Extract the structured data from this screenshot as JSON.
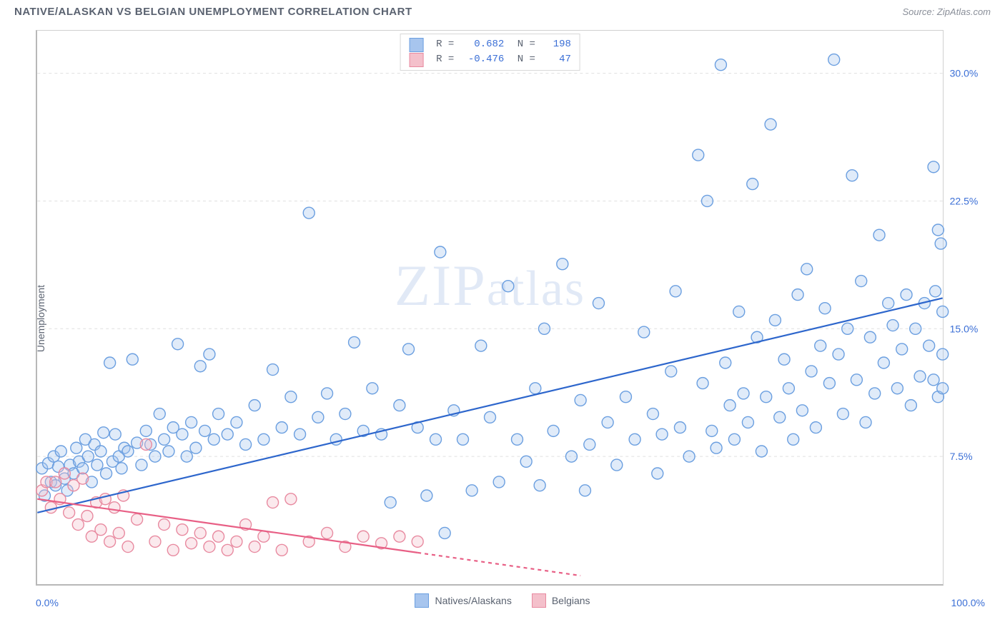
{
  "title": "NATIVE/ALASKAN VS BELGIAN UNEMPLOYMENT CORRELATION CHART",
  "source_label": "Source: ZipAtlas.com",
  "watermark_text": "ZIPatlas",
  "chart": {
    "type": "scatter",
    "ylabel": "Unemployment",
    "xlim": [
      0,
      100
    ],
    "ylim": [
      0,
      32.5
    ],
    "x_ticks": [
      {
        "pos": 0,
        "label": "0.0%"
      },
      {
        "pos": 100,
        "label": "100.0%"
      }
    ],
    "y_ticks": [
      {
        "pos": 7.5,
        "label": "7.5%"
      },
      {
        "pos": 15.0,
        "label": "15.0%"
      },
      {
        "pos": 22.5,
        "label": "22.5%"
      },
      {
        "pos": 30.0,
        "label": "30.0%"
      }
    ],
    "grid_color": "#e0e0e0",
    "background_color": "#ffffff",
    "marker_radius": 8,
    "marker_stroke_width": 1.4,
    "marker_fill_opacity": 0.35,
    "trend_line_width": 2.2,
    "series": [
      {
        "name": "Natives/Alaskans",
        "color_fill": "#a7c5ee",
        "color_stroke": "#6b9fe0",
        "trend_color": "#2d66cc",
        "r_value": "0.682",
        "n_value": "198",
        "trend": {
          "x1": 0,
          "y1": 4.2,
          "x2": 100,
          "y2": 16.8,
          "dashed_from_x": null
        },
        "points": [
          [
            0.5,
            6.8
          ],
          [
            0.8,
            5.2
          ],
          [
            1.2,
            7.1
          ],
          [
            1.5,
            6.0
          ],
          [
            1.8,
            7.5
          ],
          [
            2.0,
            5.8
          ],
          [
            2.3,
            6.9
          ],
          [
            2.6,
            7.8
          ],
          [
            3.0,
            6.2
          ],
          [
            3.3,
            5.5
          ],
          [
            3.6,
            7.0
          ],
          [
            4.0,
            6.5
          ],
          [
            4.3,
            8.0
          ],
          [
            4.6,
            7.2
          ],
          [
            5.0,
            6.8
          ],
          [
            5.3,
            8.5
          ],
          [
            5.6,
            7.5
          ],
          [
            6.0,
            6.0
          ],
          [
            6.3,
            8.2
          ],
          [
            6.6,
            7.0
          ],
          [
            7.0,
            7.8
          ],
          [
            7.3,
            8.9
          ],
          [
            7.6,
            6.5
          ],
          [
            8.0,
            13.0
          ],
          [
            8.3,
            7.2
          ],
          [
            8.6,
            8.8
          ],
          [
            9.0,
            7.5
          ],
          [
            9.3,
            6.8
          ],
          [
            9.6,
            8.0
          ],
          [
            10.0,
            7.8
          ],
          [
            10.5,
            13.2
          ],
          [
            11.0,
            8.3
          ],
          [
            11.5,
            7.0
          ],
          [
            12.0,
            9.0
          ],
          [
            12.5,
            8.2
          ],
          [
            13.0,
            7.5
          ],
          [
            13.5,
            10.0
          ],
          [
            14.0,
            8.5
          ],
          [
            14.5,
            7.8
          ],
          [
            15.0,
            9.2
          ],
          [
            15.5,
            14.1
          ],
          [
            16.0,
            8.8
          ],
          [
            16.5,
            7.5
          ],
          [
            17.0,
            9.5
          ],
          [
            17.5,
            8.0
          ],
          [
            18.0,
            12.8
          ],
          [
            18.5,
            9.0
          ],
          [
            19.0,
            13.5
          ],
          [
            19.5,
            8.5
          ],
          [
            20.0,
            10.0
          ],
          [
            21.0,
            8.8
          ],
          [
            22.0,
            9.5
          ],
          [
            23.0,
            8.2
          ],
          [
            24.0,
            10.5
          ],
          [
            25.0,
            8.5
          ],
          [
            26.0,
            12.6
          ],
          [
            27.0,
            9.2
          ],
          [
            28.0,
            11.0
          ],
          [
            29.0,
            8.8
          ],
          [
            30.0,
            21.8
          ],
          [
            31.0,
            9.8
          ],
          [
            32.0,
            11.2
          ],
          [
            33.0,
            8.5
          ],
          [
            34.0,
            10.0
          ],
          [
            35.0,
            14.2
          ],
          [
            36.0,
            9.0
          ],
          [
            37.0,
            11.5
          ],
          [
            38.0,
            8.8
          ],
          [
            39.0,
            4.8
          ],
          [
            40.0,
            10.5
          ],
          [
            41.0,
            13.8
          ],
          [
            42.0,
            9.2
          ],
          [
            43.0,
            5.2
          ],
          [
            44.0,
            8.5
          ],
          [
            44.5,
            19.5
          ],
          [
            45.0,
            3.0
          ],
          [
            46.0,
            10.2
          ],
          [
            47.0,
            8.5
          ],
          [
            48.0,
            5.5
          ],
          [
            49.0,
            14.0
          ],
          [
            50.0,
            9.8
          ],
          [
            51.0,
            6.0
          ],
          [
            52.0,
            17.5
          ],
          [
            53.0,
            8.5
          ],
          [
            54.0,
            7.2
          ],
          [
            55.0,
            11.5
          ],
          [
            55.5,
            5.8
          ],
          [
            56.0,
            15.0
          ],
          [
            57.0,
            9.0
          ],
          [
            58.0,
            18.8
          ],
          [
            59.0,
            7.5
          ],
          [
            60.0,
            10.8
          ],
          [
            60.5,
            5.5
          ],
          [
            61.0,
            8.2
          ],
          [
            62.0,
            16.5
          ],
          [
            63.0,
            9.5
          ],
          [
            64.0,
            7.0
          ],
          [
            65.0,
            11.0
          ],
          [
            66.0,
            8.5
          ],
          [
            67.0,
            14.8
          ],
          [
            68.0,
            10.0
          ],
          [
            68.5,
            6.5
          ],
          [
            69.0,
            8.8
          ],
          [
            70.0,
            12.5
          ],
          [
            70.5,
            17.2
          ],
          [
            71.0,
            9.2
          ],
          [
            72.0,
            7.5
          ],
          [
            73.0,
            25.2
          ],
          [
            73.5,
            11.8
          ],
          [
            74.0,
            22.5
          ],
          [
            74.5,
            9.0
          ],
          [
            75.0,
            8.0
          ],
          [
            75.5,
            30.5
          ],
          [
            76.0,
            13.0
          ],
          [
            76.5,
            10.5
          ],
          [
            77.0,
            8.5
          ],
          [
            77.5,
            16.0
          ],
          [
            78.0,
            11.2
          ],
          [
            78.5,
            9.5
          ],
          [
            79.0,
            23.5
          ],
          [
            79.5,
            14.5
          ],
          [
            80.0,
            7.8
          ],
          [
            80.5,
            11.0
          ],
          [
            81.0,
            27.0
          ],
          [
            81.5,
            15.5
          ],
          [
            82.0,
            9.8
          ],
          [
            82.5,
            13.2
          ],
          [
            83.0,
            11.5
          ],
          [
            83.5,
            8.5
          ],
          [
            84.0,
            17.0
          ],
          [
            84.5,
            10.2
          ],
          [
            85.0,
            18.5
          ],
          [
            85.5,
            12.5
          ],
          [
            86.0,
            9.2
          ],
          [
            86.5,
            14.0
          ],
          [
            87.0,
            16.2
          ],
          [
            87.5,
            11.8
          ],
          [
            88.0,
            30.8
          ],
          [
            88.5,
            13.5
          ],
          [
            89.0,
            10.0
          ],
          [
            89.5,
            15.0
          ],
          [
            90.0,
            24.0
          ],
          [
            90.5,
            12.0
          ],
          [
            91.0,
            17.8
          ],
          [
            91.5,
            9.5
          ],
          [
            92.0,
            14.5
          ],
          [
            92.5,
            11.2
          ],
          [
            93.0,
            20.5
          ],
          [
            93.5,
            13.0
          ],
          [
            94.0,
            16.5
          ],
          [
            94.5,
            15.2
          ],
          [
            95.0,
            11.5
          ],
          [
            95.5,
            13.8
          ],
          [
            96.0,
            17.0
          ],
          [
            96.5,
            10.5
          ],
          [
            97.0,
            15.0
          ],
          [
            97.5,
            12.2
          ],
          [
            98.0,
            16.5
          ],
          [
            98.5,
            14.0
          ],
          [
            99.0,
            12.0
          ],
          [
            99.0,
            24.5
          ],
          [
            99.2,
            17.2
          ],
          [
            99.5,
            20.8
          ],
          [
            99.5,
            11.0
          ],
          [
            99.8,
            20.0
          ],
          [
            100.0,
            16.0
          ],
          [
            100.0,
            13.5
          ],
          [
            100.0,
            11.5
          ]
        ]
      },
      {
        "name": "Belgians",
        "color_fill": "#f4c0cb",
        "color_stroke": "#e88aa0",
        "trend_color": "#e85f85",
        "r_value": "-0.476",
        "n_value": "47",
        "trend": {
          "x1": 0,
          "y1": 5.0,
          "x2": 60,
          "y2": 0.5,
          "dashed_from_x": 42
        },
        "points": [
          [
            0.5,
            5.5
          ],
          [
            1.0,
            6.0
          ],
          [
            1.5,
            4.5
          ],
          [
            2.0,
            6.0
          ],
          [
            2.5,
            5.0
          ],
          [
            3.0,
            6.5
          ],
          [
            3.5,
            4.2
          ],
          [
            4.0,
            5.8
          ],
          [
            4.5,
            3.5
          ],
          [
            5.0,
            6.2
          ],
          [
            5.5,
            4.0
          ],
          [
            6.0,
            2.8
          ],
          [
            6.5,
            4.8
          ],
          [
            7.0,
            3.2
          ],
          [
            7.5,
            5.0
          ],
          [
            8.0,
            2.5
          ],
          [
            8.5,
            4.5
          ],
          [
            9.0,
            3.0
          ],
          [
            9.5,
            5.2
          ],
          [
            10.0,
            2.2
          ],
          [
            11.0,
            3.8
          ],
          [
            12.0,
            8.2
          ],
          [
            13.0,
            2.5
          ],
          [
            14.0,
            3.5
          ],
          [
            15.0,
            2.0
          ],
          [
            16.0,
            3.2
          ],
          [
            17.0,
            2.4
          ],
          [
            18.0,
            3.0
          ],
          [
            19.0,
            2.2
          ],
          [
            20.0,
            2.8
          ],
          [
            21.0,
            2.0
          ],
          [
            22.0,
            2.5
          ],
          [
            23.0,
            3.5
          ],
          [
            24.0,
            2.2
          ],
          [
            25.0,
            2.8
          ],
          [
            26.0,
            4.8
          ],
          [
            27.0,
            2.0
          ],
          [
            28.0,
            5.0
          ],
          [
            30.0,
            2.5
          ],
          [
            32.0,
            3.0
          ],
          [
            34.0,
            2.2
          ],
          [
            36.0,
            2.8
          ],
          [
            38.0,
            2.4
          ],
          [
            40.0,
            2.8
          ],
          [
            42.0,
            2.5
          ]
        ]
      }
    ],
    "bottom_legend": [
      {
        "label": "Natives/Alaskans",
        "fill": "#a7c5ee",
        "stroke": "#6b9fe0"
      },
      {
        "label": "Belgians",
        "fill": "#f4c0cb",
        "stroke": "#e88aa0"
      }
    ]
  }
}
